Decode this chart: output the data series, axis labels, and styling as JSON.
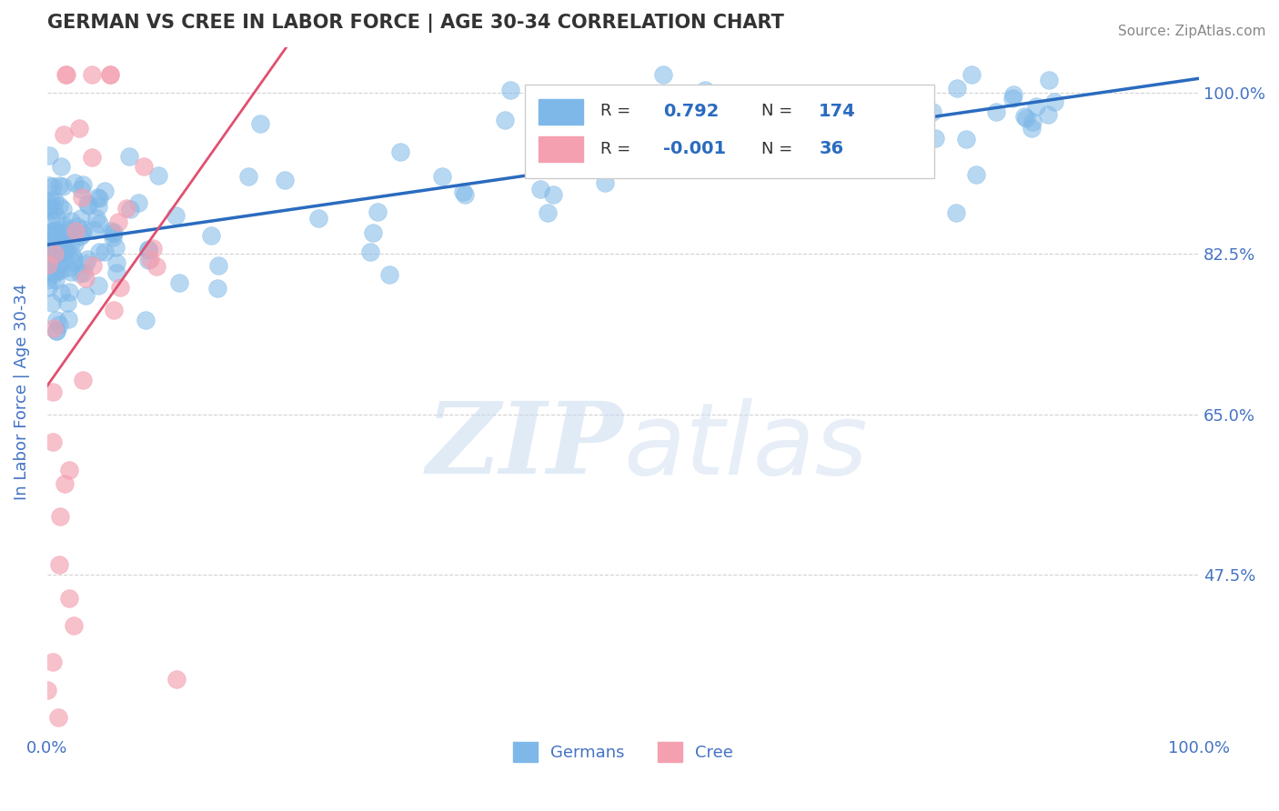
{
  "title": "GERMAN VS CREE IN LABOR FORCE | AGE 30-34 CORRELATION CHART",
  "source_text": "Source: ZipAtlas.com",
  "ylabel": "In Labor Force | Age 30-34",
  "xlim": [
    0.0,
    1.0
  ],
  "ylim": [
    0.3,
    1.05
  ],
  "yticks": [
    0.475,
    0.65,
    0.825,
    1.0
  ],
  "ytick_labels": [
    "47.5%",
    "65.0%",
    "82.5%",
    "100.0%"
  ],
  "xtick_labels": [
    "0.0%",
    "100.0%"
  ],
  "german_R": 0.792,
  "german_N": 174,
  "cree_R": -0.001,
  "cree_N": 36,
  "blue_color": "#7eb8e8",
  "pink_color": "#f4a0b0",
  "blue_line_color": "#2a6bbf",
  "pink_line_color": "#e05070",
  "dashed_line_color": "#c0c0c0",
  "title_color": "#333333",
  "axis_label_color": "#4472c4",
  "background_color": "#ffffff",
  "legend_R_color": "#333333",
  "legend_N_color": "#4472c4"
}
